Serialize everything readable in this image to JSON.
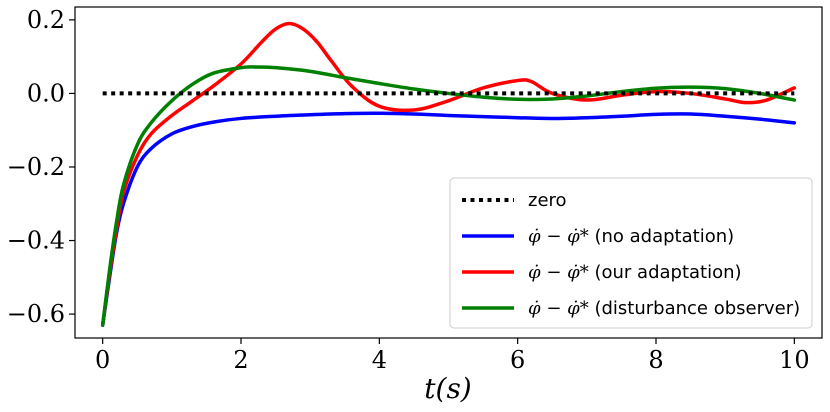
{
  "chart_data": {
    "type": "line",
    "title": "",
    "xlabel": "t(s)",
    "ylabel": "",
    "xlim": [
      -0.4,
      10.4
    ],
    "ylim": [
      -0.665,
      0.235
    ],
    "xticks": [
      0,
      2,
      4,
      6,
      8,
      10
    ],
    "xtick_labels": [
      "0",
      "2",
      "4",
      "6",
      "8",
      "10"
    ],
    "yticks": [
      0.2,
      0.0,
      -0.2,
      -0.4,
      -0.6
    ],
    "ytick_labels": [
      "0.2",
      "0.0",
      "−0.2",
      "−0.4",
      "−0.6"
    ],
    "grid": false,
    "legend_position": "lower-right",
    "series": [
      {
        "name": "zero",
        "legend_math": "",
        "legend_text": "zero",
        "color": "#000000",
        "style": "dotted",
        "x": [
          0,
          10
        ],
        "y": [
          0,
          0
        ]
      },
      {
        "name": "no adaptation",
        "legend_math": "φ̇ − φ̇*",
        "legend_text": "(no adaptation)",
        "color": "#0000ff",
        "style": "solid",
        "x": [
          0,
          0.1,
          0.2,
          0.3,
          0.5,
          0.7,
          1.0,
          1.3,
          1.6,
          2.0,
          2.5,
          3.0,
          3.5,
          4.0,
          4.5,
          5.0,
          5.5,
          6.0,
          6.5,
          7.0,
          7.5,
          8.0,
          8.5,
          9.0,
          9.5,
          10.0
        ],
        "y": [
          -0.63,
          -0.5,
          -0.38,
          -0.3,
          -0.2,
          -0.15,
          -0.11,
          -0.09,
          -0.078,
          -0.068,
          -0.062,
          -0.058,
          -0.055,
          -0.054,
          -0.056,
          -0.06,
          -0.063,
          -0.066,
          -0.068,
          -0.066,
          -0.062,
          -0.057,
          -0.056,
          -0.062,
          -0.07,
          -0.08
        ]
      },
      {
        "name": "our adaptation",
        "legend_math": "φ̇ − φ̇*",
        "legend_text": "(our adaptation)",
        "color": "#ff0000",
        "style": "solid",
        "x": [
          0,
          0.1,
          0.2,
          0.3,
          0.5,
          0.7,
          1.0,
          1.3,
          1.6,
          2.0,
          2.3,
          2.5,
          2.7,
          2.9,
          3.1,
          3.3,
          3.6,
          4.0,
          4.5,
          5.0,
          5.5,
          6.0,
          6.2,
          6.5,
          7.0,
          7.5,
          8.0,
          8.5,
          9.0,
          9.3,
          9.6,
          10.0
        ],
        "y": [
          -0.63,
          -0.49,
          -0.37,
          -0.27,
          -0.17,
          -0.11,
          -0.06,
          -0.02,
          0.02,
          0.08,
          0.14,
          0.175,
          0.19,
          0.175,
          0.14,
          0.09,
          0.02,
          -0.035,
          -0.045,
          -0.02,
          0.015,
          0.035,
          0.032,
          0.0,
          -0.018,
          -0.005,
          0.005,
          0.0,
          -0.015,
          -0.025,
          -0.018,
          0.015
        ]
      },
      {
        "name": "disturbance observer",
        "legend_math": "φ̇ − φ̇*",
        "legend_text": "(disturbance observer)",
        "color": "#008000",
        "style": "solid",
        "x": [
          0,
          0.1,
          0.2,
          0.3,
          0.5,
          0.7,
          1.0,
          1.3,
          1.6,
          2.0,
          2.2,
          2.5,
          3.0,
          3.5,
          4.0,
          4.5,
          5.0,
          5.5,
          6.0,
          6.5,
          7.0,
          7.5,
          8.0,
          8.5,
          9.0,
          9.5,
          10.0
        ],
        "y": [
          -0.63,
          -0.48,
          -0.35,
          -0.25,
          -0.14,
          -0.08,
          -0.02,
          0.025,
          0.055,
          0.07,
          0.072,
          0.07,
          0.06,
          0.043,
          0.027,
          0.012,
          0.0,
          -0.01,
          -0.016,
          -0.015,
          -0.007,
          0.005,
          0.014,
          0.017,
          0.013,
          0.0,
          -0.018
        ]
      }
    ]
  }
}
